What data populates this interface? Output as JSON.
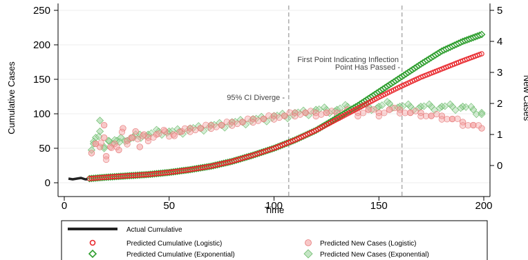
{
  "chart_data": {
    "type": "scatter",
    "xlabel": "Time",
    "ylabel_left": "Cumulative Cases",
    "ylabel_right": "New Cases",
    "xlim": [
      0,
      200
    ],
    "ylim_left": [
      0,
      255
    ],
    "ylim_right": [
      0,
      5
    ],
    "x_ticks": [
      "0",
      "50",
      "100",
      "150",
      "200"
    ],
    "y_left_ticks": [
      "0",
      "50",
      "100",
      "150",
      "200",
      "250"
    ],
    "y_right_ticks": [
      "0",
      "1",
      "2",
      "3",
      "4",
      "5"
    ],
    "grid": "horizontal",
    "vlines": [
      107,
      161
    ],
    "annotations": [
      {
        "text": "95% CI Diverge -"
      },
      {
        "text": "First Point Indicating Inflection"
      },
      {
        "text": "Point Has Passed -"
      }
    ],
    "actual_cumulative": {
      "x": [
        2,
        4,
        6,
        8,
        9,
        10,
        11
      ],
      "y": [
        6,
        5,
        6,
        7,
        6,
        5,
        5
      ]
    },
    "series": [
      {
        "name": "Actual Cumulative",
        "color": "#222222",
        "marker": "line"
      },
      {
        "name": "Predicted Cumulative (Logistic)",
        "color": "#e8262b",
        "marker": "circle"
      },
      {
        "name": "Predicted New Cases (Logistic)",
        "color": "#f4a3a3",
        "marker": "circle-filled"
      },
      {
        "name": "Predicted Cumulative (Exponential)",
        "color": "#2e9e2e",
        "marker": "diamond"
      },
      {
        "name": "Predicted New Cases (Exponential)",
        "color": "#9fd49f",
        "marker": "diamond-filled"
      }
    ],
    "predicted_cumulative_logistic": {
      "x": [
        12,
        20,
        30,
        40,
        50,
        60,
        70,
        80,
        90,
        100,
        110,
        120,
        130,
        140,
        150,
        160,
        170,
        180,
        190,
        199
      ],
      "y": [
        6,
        8,
        10,
        12,
        15,
        19,
        24,
        31,
        40,
        50,
        62,
        76,
        92,
        108,
        124,
        139,
        153,
        165,
        177,
        187
      ]
    },
    "predicted_cumulative_exponential": {
      "x": [
        12,
        20,
        30,
        40,
        50,
        60,
        70,
        80,
        90,
        100,
        110,
        120,
        130,
        140,
        150,
        160,
        170,
        180,
        190,
        199
      ],
      "y": [
        6,
        8,
        10,
        12,
        15,
        19,
        24,
        31,
        40,
        50,
        62,
        76,
        94,
        112,
        132,
        152,
        172,
        191,
        205,
        215
      ]
    },
    "predicted_new_logistic": {
      "x": [
        13,
        15,
        17,
        19,
        20,
        22,
        24,
        26,
        28,
        30,
        32,
        34,
        36,
        38,
        40,
        44,
        48,
        52,
        56,
        60,
        65,
        70,
        75,
        80,
        85,
        90,
        95,
        100,
        105,
        110,
        115,
        120,
        125,
        130,
        135,
        140,
        145,
        150,
        155,
        160,
        165,
        170,
        175,
        180,
        185,
        190,
        195,
        199
      ],
      "y": [
        0.4,
        0.7,
        0.6,
        0.9,
        0.3,
        0.6,
        0.7,
        0.5,
        1.2,
        0.8,
        0.9,
        1.1,
        0.6,
        1.0,
        0.9,
        1.0,
        1.1,
        1.0,
        1.1,
        1.2,
        1.2,
        1.3,
        1.3,
        1.4,
        1.4,
        1.5,
        1.5,
        1.6,
        1.6,
        1.7,
        1.7,
        1.7,
        1.7,
        1.7,
        1.8,
        1.7,
        1.8,
        1.7,
        1.8,
        1.8,
        1.7,
        1.7,
        1.6,
        1.6,
        1.5,
        1.4,
        1.3,
        1.2
      ]
    },
    "predicted_new_exponential": {
      "x": [
        13,
        15,
        17,
        19,
        21,
        23,
        25,
        27,
        30,
        33,
        36,
        40,
        45,
        50,
        55,
        60,
        65,
        70,
        75,
        80,
        85,
        90,
        95,
        100,
        105,
        110,
        115,
        120,
        125,
        130,
        135,
        140,
        145,
        150,
        155,
        160,
        165,
        170,
        175,
        180,
        185,
        190,
        195,
        199
      ],
      "y": [
        0.5,
        0.9,
        1.1,
        0.6,
        0.8,
        0.7,
        0.8,
        0.9,
        0.8,
        0.9,
        1.0,
        1.0,
        1.1,
        1.1,
        1.1,
        1.2,
        1.2,
        1.3,
        1.3,
        1.4,
        1.4,
        1.5,
        1.5,
        1.6,
        1.6,
        1.7,
        1.7,
        1.8,
        1.8,
        1.8,
        1.9,
        1.9,
        1.9,
        1.9,
        2.0,
        1.9,
        1.9,
        1.9,
        1.9,
        1.9,
        1.9,
        1.9,
        1.8,
        1.7
      ]
    },
    "spike_points": [
      {
        "series": "exp_new",
        "x": 17,
        "y": 1.45
      },
      {
        "series": "exp_new",
        "x": 14,
        "y": 0.7
      },
      {
        "series": "log_new",
        "x": 19,
        "y": 1.3
      }
    ]
  }
}
